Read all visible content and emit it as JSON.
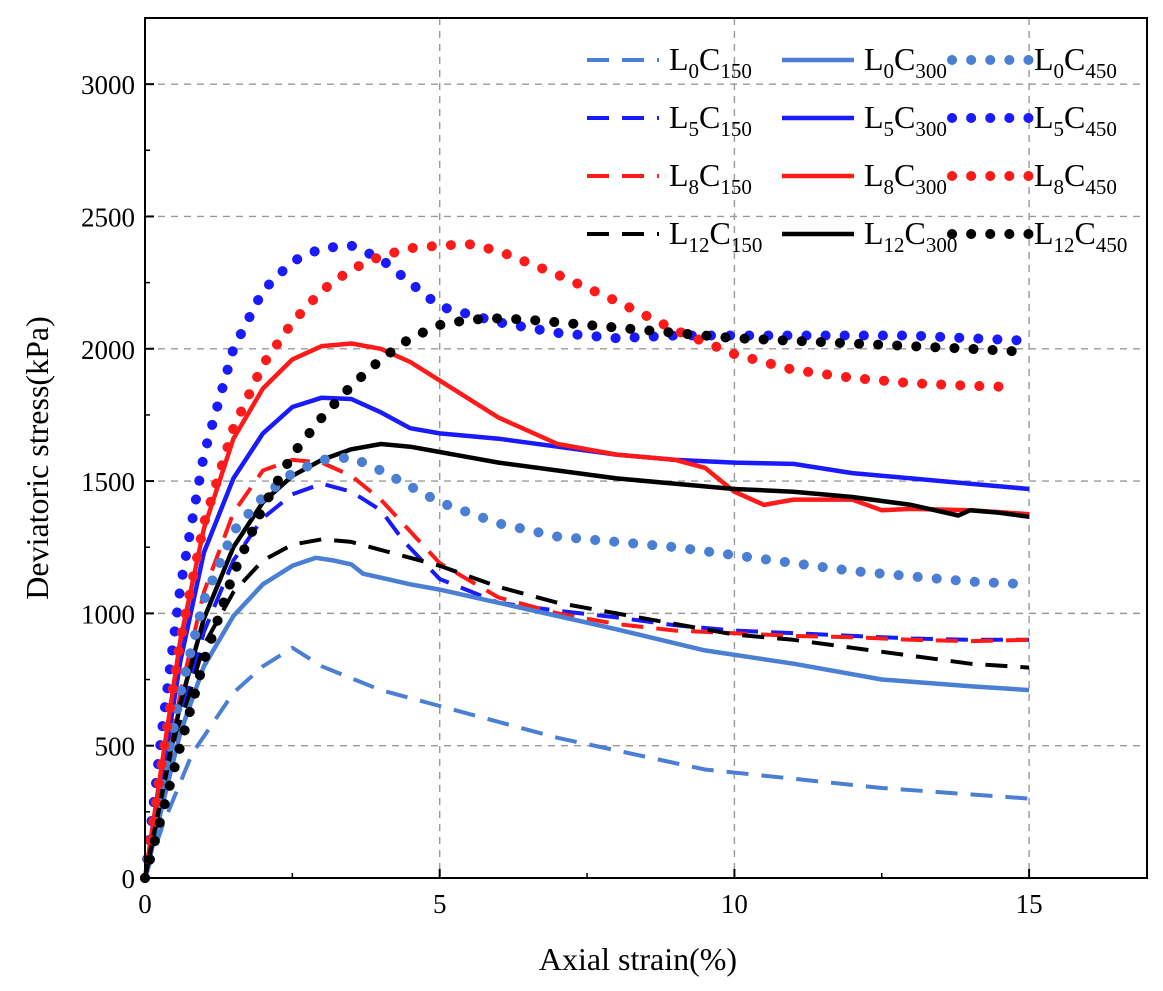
{
  "chart_data": {
    "type": "line",
    "title": "",
    "xlabel": "Axial strain(%)",
    "ylabel": "Deviatoric stress(kPa)",
    "xlim": [
      0,
      17
    ],
    "ylim": [
      0,
      3250
    ],
    "x_ticks": [
      0,
      5,
      10,
      15
    ],
    "x_tick_labels": [
      "0",
      "5",
      "10",
      "15"
    ],
    "y_ticks": [
      0,
      500,
      1000,
      1500,
      2000,
      2500,
      3000
    ],
    "y_tick_labels": [
      "0",
      "500",
      "1000",
      "1500",
      "2000",
      "2500",
      "3000"
    ],
    "grid": true,
    "legend_position": "top-right",
    "series": [
      {
        "name": "L0C150",
        "label_main": "L",
        "label_sub1": "0",
        "label_mid": "C",
        "label_sub2": "150",
        "style": "dashed",
        "color": "#4a7fd4",
        "x": [
          0,
          0.3,
          0.8,
          1.5,
          2.0,
          2.5,
          3.0,
          4.0,
          5.0,
          7.0,
          9.5,
          12.5,
          15.0
        ],
        "y": [
          0,
          200,
          470,
          700,
          800,
          870,
          800,
          710,
          650,
          530,
          410,
          340,
          300
        ]
      },
      {
        "name": "L0C300",
        "label_main": "L",
        "label_sub1": "0",
        "label_mid": "C",
        "label_sub2": "300",
        "style": "solid",
        "color": "#4a7fd4",
        "x": [
          0,
          0.3,
          0.6,
          1.0,
          1.5,
          2.0,
          2.5,
          2.9,
          3.2,
          3.5,
          3.7,
          4.5,
          5.0,
          6.0,
          7.0,
          8.0,
          9.5,
          11.0,
          12.5,
          14.0,
          15.0
        ],
        "y": [
          0,
          280,
          550,
          800,
          990,
          1110,
          1180,
          1210,
          1200,
          1185,
          1150,
          1110,
          1090,
          1040,
          990,
          940,
          860,
          810,
          750,
          725,
          710
        ]
      },
      {
        "name": "L0C450",
        "label_main": "L",
        "label_sub1": "0",
        "label_mid": "C",
        "label_sub2": "450",
        "style": "dotted",
        "color": "#4a7fd4",
        "x": [
          0,
          0.3,
          0.6,
          1.0,
          1.5,
          2.0,
          2.5,
          3.0,
          3.5,
          4.0,
          5.0,
          6.0,
          7.0,
          8.0,
          9.0,
          10.0,
          11.0,
          12.0,
          13.0,
          14.0,
          15.0
        ],
        "y": [
          0,
          350,
          700,
          1050,
          1310,
          1440,
          1530,
          1580,
          1590,
          1540,
          1420,
          1340,
          1290,
          1270,
          1250,
          1220,
          1190,
          1160,
          1140,
          1120,
          1110
        ]
      },
      {
        "name": "L5C150",
        "label_main": "L",
        "label_sub1": "5",
        "label_mid": "C",
        "label_sub2": "150",
        "style": "dashed",
        "color": "#1a1aff",
        "x": [
          0,
          0.3,
          0.6,
          1.0,
          1.5,
          2.0,
          2.5,
          3.0,
          3.5,
          4.0,
          4.4,
          5.0,
          6.0,
          7.0,
          8.0,
          9.0,
          10.0,
          11.0,
          12.0,
          13.0,
          14.0,
          15.0
        ],
        "y": [
          0,
          300,
          600,
          930,
          1200,
          1360,
          1450,
          1490,
          1460,
          1390,
          1270,
          1130,
          1040,
          1010,
          985,
          955,
          935,
          925,
          915,
          905,
          900,
          900
        ]
      },
      {
        "name": "L5C300",
        "label_main": "L",
        "label_sub1": "5",
        "label_mid": "C",
        "label_sub2": "300",
        "style": "solid",
        "color": "#1a1aff",
        "x": [
          0,
          0.3,
          0.6,
          1.0,
          1.5,
          2.0,
          2.5,
          3.0,
          3.5,
          4.0,
          4.5,
          5.0,
          6.0,
          7.0,
          8.0,
          9.0,
          10.0,
          11.0,
          12.0,
          13.0,
          14.0,
          15.0
        ],
        "y": [
          0,
          400,
          820,
          1230,
          1510,
          1680,
          1780,
          1815,
          1810,
          1760,
          1700,
          1680,
          1660,
          1630,
          1600,
          1580,
          1570,
          1565,
          1530,
          1510,
          1490,
          1470
        ]
      },
      {
        "name": "L5C450",
        "label_main": "L",
        "label_sub1": "5",
        "label_mid": "C",
        "label_sub2": "450",
        "style": "dotted",
        "color": "#1a1aff",
        "x": [
          0,
          0.3,
          0.6,
          1.0,
          1.5,
          2.0,
          2.5,
          3.0,
          3.5,
          4.0,
          4.5,
          5.0,
          6.0,
          7.0,
          8.0,
          9.0,
          10.0,
          11.0,
          12.0,
          13.0,
          14.0,
          15.0
        ],
        "y": [
          0,
          580,
          1100,
          1600,
          2000,
          2220,
          2330,
          2380,
          2390,
          2340,
          2250,
          2160,
          2100,
          2060,
          2040,
          2050,
          2050,
          2050,
          2050,
          2050,
          2040,
          2030
        ]
      },
      {
        "name": "L8C150",
        "label_main": "L",
        "label_sub1": "8",
        "label_mid": "C",
        "label_sub2": "150",
        "style": "dashed",
        "color": "#ff1a1a",
        "x": [
          0,
          0.3,
          0.6,
          1.0,
          1.5,
          2.0,
          2.5,
          3.0,
          3.5,
          4.0,
          4.5,
          5.0,
          6.0,
          7.0,
          8.0,
          9.0,
          10.0,
          11.0,
          12.0,
          13.0,
          14.0,
          15.0
        ],
        "y": [
          0,
          330,
          700,
          1080,
          1380,
          1540,
          1580,
          1570,
          1520,
          1430,
          1310,
          1190,
          1060,
          1000,
          960,
          935,
          925,
          915,
          910,
          900,
          895,
          900
        ]
      },
      {
        "name": "L8C300",
        "label_main": "L",
        "label_sub1": "8",
        "label_mid": "C",
        "label_sub2": "300",
        "style": "solid",
        "color": "#ff1a1a",
        "x": [
          0,
          0.3,
          0.6,
          1.0,
          1.5,
          2.0,
          2.5,
          3.0,
          3.5,
          4.0,
          4.5,
          5.0,
          6.0,
          7.0,
          8.0,
          9.0,
          9.5,
          10.0,
          10.5,
          11.0,
          12.0,
          12.5,
          13.0,
          14.0,
          15.0
        ],
        "y": [
          0,
          450,
          900,
          1320,
          1660,
          1850,
          1960,
          2010,
          2020,
          2000,
          1950,
          1880,
          1740,
          1640,
          1600,
          1580,
          1550,
          1460,
          1410,
          1430,
          1430,
          1390,
          1395,
          1390,
          1375
        ]
      },
      {
        "name": "L8C450",
        "label_main": "L",
        "label_sub1": "8",
        "label_mid": "C",
        "label_sub2": "450",
        "style": "dotted",
        "color": "#ff1a1a",
        "x": [
          0,
          0.3,
          0.6,
          1.0,
          1.5,
          2.0,
          2.5,
          3.0,
          3.5,
          4.0,
          4.5,
          5.0,
          5.5,
          6.0,
          7.0,
          8.0,
          9.0,
          10.0,
          11.0,
          12.0,
          13.0,
          14.0,
          14.8
        ],
        "y": [
          0,
          460,
          900,
          1340,
          1700,
          1940,
          2100,
          2220,
          2300,
          2350,
          2380,
          2390,
          2395,
          2370,
          2280,
          2180,
          2070,
          1980,
          1920,
          1890,
          1870,
          1860,
          1855
        ]
      },
      {
        "name": "L12C150",
        "label_main": "L",
        "label_sub1": "12",
        "label_mid": "C",
        "label_sub2": "150",
        "style": "dashed",
        "color": "#000000",
        "x": [
          0,
          0.3,
          0.6,
          1.0,
          1.5,
          2.0,
          2.5,
          3.0,
          3.5,
          4.0,
          4.5,
          5.0,
          6.0,
          7.0,
          8.0,
          9.0,
          10.0,
          11.0,
          12.0,
          13.0,
          14.0,
          15.0
        ],
        "y": [
          0,
          300,
          580,
          880,
          1080,
          1200,
          1260,
          1280,
          1270,
          1240,
          1210,
          1180,
          1100,
          1040,
          1000,
          960,
          920,
          900,
          870,
          840,
          810,
          795
        ]
      },
      {
        "name": "L12C300",
        "label_main": "L",
        "label_sub1": "12",
        "label_mid": "C",
        "label_sub2": "300",
        "style": "solid",
        "color": "#000000",
        "x": [
          0,
          0.3,
          0.6,
          1.0,
          1.5,
          2.0,
          2.5,
          3.0,
          3.5,
          4.0,
          4.5,
          5.0,
          5.5,
          6.0,
          7.0,
          8.0,
          9.0,
          10.0,
          11.0,
          12.0,
          13.0,
          13.8,
          14.0,
          14.5,
          15.0
        ],
        "y": [
          0,
          330,
          660,
          980,
          1250,
          1420,
          1520,
          1580,
          1620,
          1640,
          1630,
          1610,
          1590,
          1570,
          1540,
          1510,
          1490,
          1470,
          1460,
          1440,
          1410,
          1370,
          1390,
          1380,
          1365
        ]
      },
      {
        "name": "L12C450",
        "label_main": "L",
        "label_sub1": "12",
        "label_mid": "C",
        "label_sub2": "450",
        "style": "dotted",
        "color": "#000000",
        "x": [
          0,
          0.3,
          0.6,
          1.0,
          1.5,
          2.0,
          2.5,
          3.0,
          3.5,
          4.0,
          4.5,
          5.0,
          5.5,
          6.0,
          6.5,
          7.0,
          8.0,
          9.0,
          10.0,
          11.0,
          12.0,
          13.0,
          14.0,
          14.8
        ],
        "y": [
          0,
          250,
          500,
          820,
          1150,
          1400,
          1600,
          1740,
          1860,
          1960,
          2040,
          2090,
          2110,
          2115,
          2110,
          2100,
          2080,
          2060,
          2040,
          2030,
          2020,
          2010,
          2000,
          1990
        ]
      }
    ]
  }
}
